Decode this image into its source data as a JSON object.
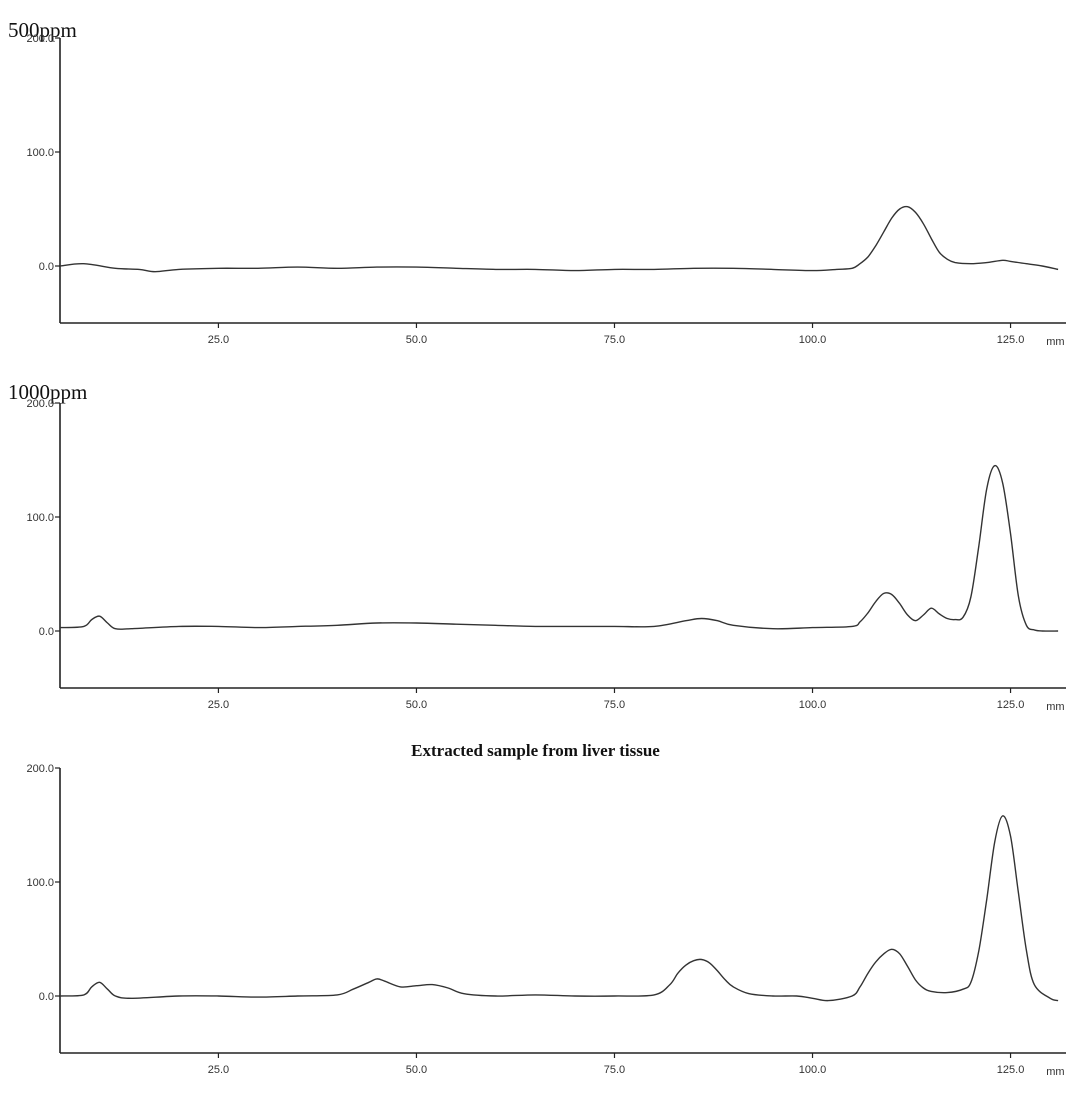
{
  "chart_data": [
    {
      "type": "line",
      "label": "500ppm",
      "caption": "",
      "x_unit": "mm",
      "xlim": [
        5,
        132
      ],
      "ylim": [
        -50,
        200
      ],
      "x_ticks": [
        "25.0",
        "50.0",
        "75.0",
        "100.0",
        "125.0"
      ],
      "y_ticks": [
        "0.0",
        "100.0",
        "200.0"
      ],
      "line_color": "#333333",
      "x": [
        5,
        8,
        12,
        15,
        17,
        20,
        25,
        30,
        35,
        40,
        45,
        50,
        55,
        60,
        65,
        70,
        75,
        80,
        85,
        90,
        95,
        100,
        103,
        105,
        106,
        107,
        108,
        109,
        110,
        111,
        112,
        113,
        114,
        115,
        116,
        117,
        118,
        120,
        122,
        124,
        125,
        127,
        129,
        131
      ],
      "y": [
        0,
        2,
        -2,
        -3,
        -5,
        -3,
        -2,
        -2,
        -1,
        -2,
        -1,
        -1,
        -2,
        -3,
        -3,
        -4,
        -3,
        -3,
        -2,
        -2,
        -3,
        -4,
        -3,
        -2,
        2,
        8,
        18,
        30,
        42,
        50,
        52,
        47,
        37,
        24,
        12,
        6,
        3,
        2,
        3,
        5,
        4,
        2,
        0,
        -3
      ]
    },
    {
      "type": "line",
      "label": "1000ppm",
      "caption": "",
      "x_unit": "mm",
      "xlim": [
        5,
        132
      ],
      "ylim": [
        -50,
        200
      ],
      "x_ticks": [
        "25.0",
        "50.0",
        "75.0",
        "100.0",
        "125.0"
      ],
      "y_ticks": [
        "0.0",
        "100.0",
        "200.0"
      ],
      "line_color": "#333333",
      "x": [
        5,
        8,
        9,
        10,
        11,
        12,
        14,
        20,
        25,
        30,
        35,
        40,
        45,
        50,
        55,
        60,
        65,
        70,
        75,
        80,
        84,
        86,
        88,
        90,
        95,
        100,
        105,
        106,
        107,
        108,
        109,
        110,
        111,
        112,
        113,
        114,
        115,
        116,
        117,
        118,
        119,
        120,
        121,
        122,
        123,
        124,
        125,
        126,
        127,
        128,
        129,
        131
      ],
      "y": [
        3,
        4,
        10,
        13,
        7,
        2,
        2,
        4,
        4,
        3,
        4,
        5,
        7,
        7,
        6,
        5,
        4,
        4,
        4,
        4,
        9,
        11,
        9,
        5,
        2,
        3,
        4,
        8,
        16,
        26,
        33,
        32,
        24,
        14,
        9,
        14,
        20,
        15,
        11,
        10,
        12,
        30,
        75,
        125,
        145,
        130,
        85,
        30,
        5,
        1,
        0,
        0
      ]
    },
    {
      "type": "line",
      "label": "",
      "caption": "Extracted sample from liver tissue",
      "x_unit": "mm",
      "xlim": [
        5,
        132
      ],
      "ylim": [
        -50,
        200
      ],
      "x_ticks": [
        "25.0",
        "50.0",
        "75.0",
        "100.0",
        "125.0"
      ],
      "y_ticks": [
        "0.0",
        "100.0",
        "200.0"
      ],
      "line_color": "#333333",
      "x": [
        5,
        8,
        9,
        10,
        11,
        12,
        14,
        20,
        25,
        30,
        35,
        40,
        42,
        44,
        45,
        46,
        48,
        50,
        52,
        54,
        56,
        60,
        65,
        70,
        75,
        80,
        82,
        83,
        84,
        85,
        86,
        87,
        88,
        89,
        90,
        92,
        95,
        98,
        100,
        102,
        105,
        106,
        107,
        108,
        109,
        110,
        111,
        112,
        113,
        114,
        115,
        117,
        119,
        120,
        121,
        122,
        123,
        124,
        125,
        126,
        127,
        128,
        130,
        131
      ],
      "y": [
        0,
        1,
        8,
        12,
        6,
        0,
        -2,
        0,
        0,
        -1,
        0,
        1,
        6,
        12,
        15,
        13,
        8,
        9,
        10,
        7,
        2,
        0,
        1,
        0,
        0,
        1,
        10,
        20,
        27,
        31,
        32,
        29,
        22,
        14,
        8,
        2,
        0,
        0,
        -2,
        -4,
        0,
        8,
        20,
        30,
        37,
        41,
        37,
        26,
        14,
        7,
        4,
        3,
        6,
        12,
        40,
        85,
        135,
        158,
        140,
        90,
        40,
        10,
        -2,
        -4
      ]
    }
  ]
}
